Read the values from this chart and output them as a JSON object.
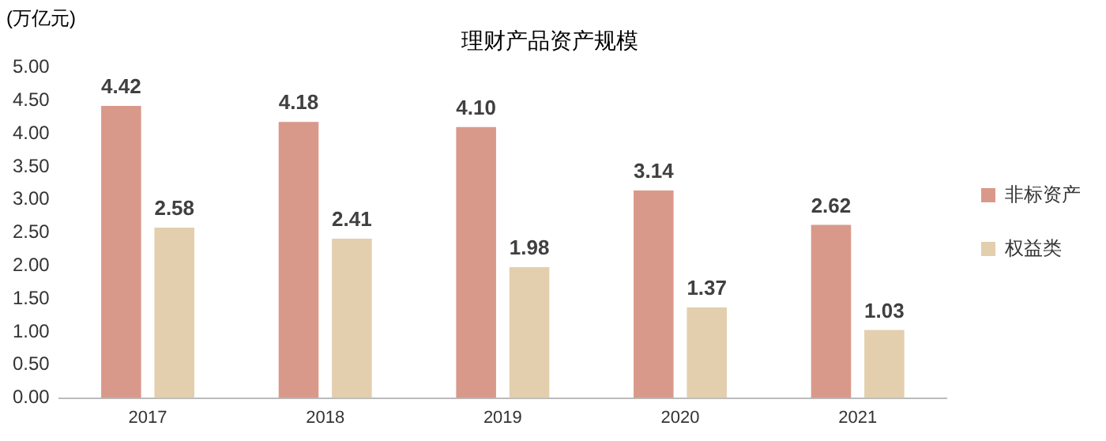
{
  "chart_data": {
    "type": "bar",
    "title": "理财产品资产规模",
    "ylabel": "(万亿元)",
    "categories": [
      "2017",
      "2018",
      "2019",
      "2020",
      "2021"
    ],
    "series": [
      {
        "name": "非标资产",
        "color": "#d9998a",
        "values": [
          4.42,
          4.18,
          4.1,
          3.14,
          2.62
        ],
        "value_labels": [
          "4.42",
          "4.18",
          "4.10",
          "3.14",
          "2.62"
        ]
      },
      {
        "name": "权益类",
        "color": "#e3cfae",
        "values": [
          2.58,
          2.41,
          1.98,
          1.37,
          1.03
        ],
        "value_labels": [
          "2.58",
          "2.41",
          "1.98",
          "1.37",
          "1.03"
        ]
      }
    ],
    "ylim": [
      0,
      5
    ],
    "yticks": [
      {
        "value": 0,
        "label": "0.00"
      },
      {
        "value": 0.5,
        "label": "0.50"
      },
      {
        "value": 1,
        "label": "1.00"
      },
      {
        "value": 1.5,
        "label": "1.50"
      },
      {
        "value": 2,
        "label": "2.00"
      },
      {
        "value": 2.5,
        "label": "2.50"
      },
      {
        "value": 3,
        "label": "3.00"
      },
      {
        "value": 3.5,
        "label": "3.50"
      },
      {
        "value": 4,
        "label": "4.00"
      },
      {
        "value": 4.5,
        "label": "4.50"
      },
      {
        "value": 5,
        "label": "5.00"
      }
    ],
    "grid": false,
    "legend": "right"
  }
}
